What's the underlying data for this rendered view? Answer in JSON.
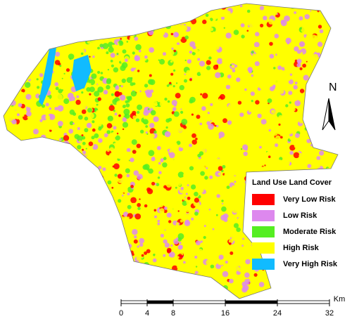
{
  "legend": {
    "title": "Land Use Land Cover",
    "items": [
      {
        "label": "Very Low Risk",
        "color": "#ff0000"
      },
      {
        "label": "Low Risk",
        "color": "#dd88ee"
      },
      {
        "label": "Moderate Risk",
        "color": "#55ee22"
      },
      {
        "label": "High Risk",
        "color": "#ffff00"
      },
      {
        "label": "Very High Risk",
        "color": "#11bbff"
      }
    ]
  },
  "north": "N",
  "scale": {
    "unit": "Km",
    "ticks": [
      0,
      4,
      8,
      16,
      24,
      32
    ]
  }
}
